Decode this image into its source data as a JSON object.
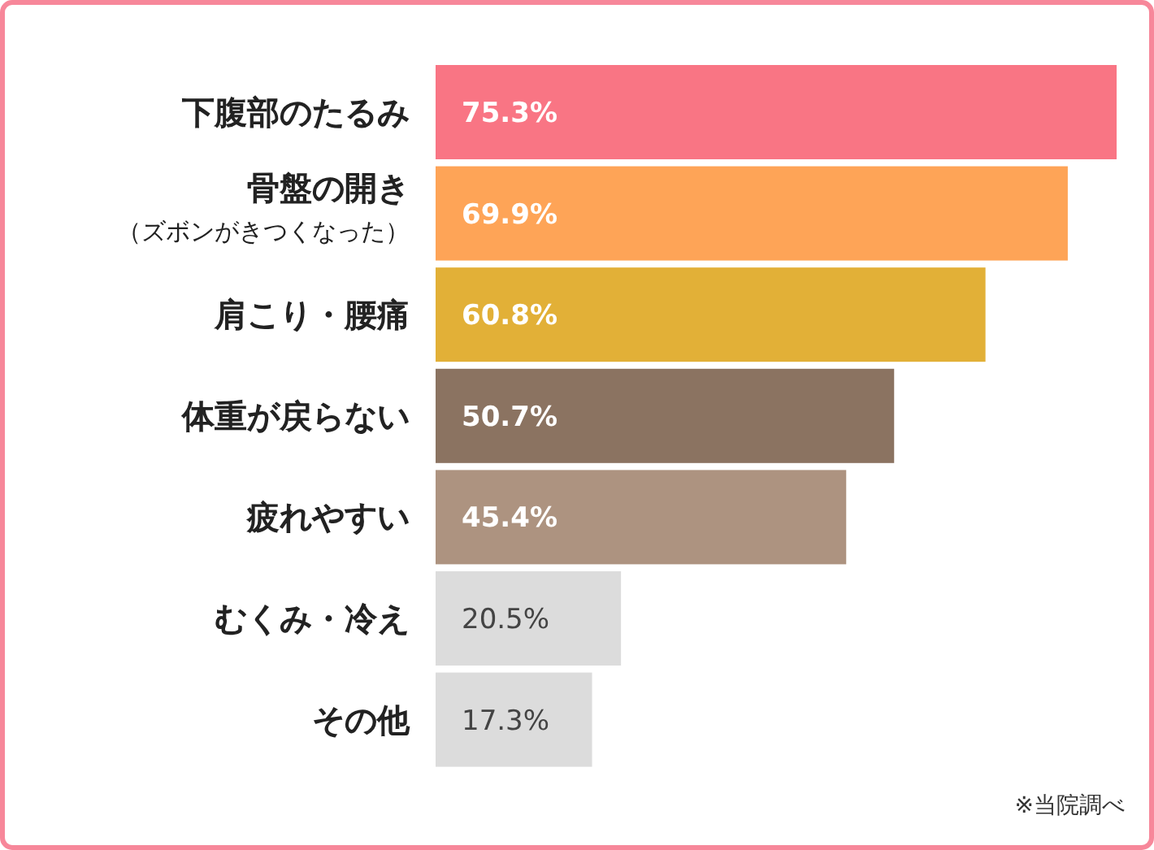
{
  "chart_data": {
    "type": "bar",
    "orientation": "horizontal",
    "value_labels": [
      "75.3%",
      "69.9%",
      "60.8%",
      "50.7%",
      "45.4%",
      "20.5%",
      "17.3%"
    ],
    "categories": [
      "下腹部のたるみ",
      "骨盤の開き（ズボンがきつくなった）",
      "肩こり・腰痛",
      "体重が戻らない",
      "疲れやすい",
      "むくみ・冷え",
      "その他"
    ],
    "values": [
      75.3,
      69.9,
      60.8,
      50.7,
      45.4,
      20.5,
      17.3
    ],
    "colors": [
      "#f97584",
      "#fea457",
      "#e2b037",
      "#8b7361",
      "#ad9380",
      "#dcdcdc",
      "#dcdcdc"
    ],
    "annotations": [
      "※当院調べ"
    ]
  }
}
